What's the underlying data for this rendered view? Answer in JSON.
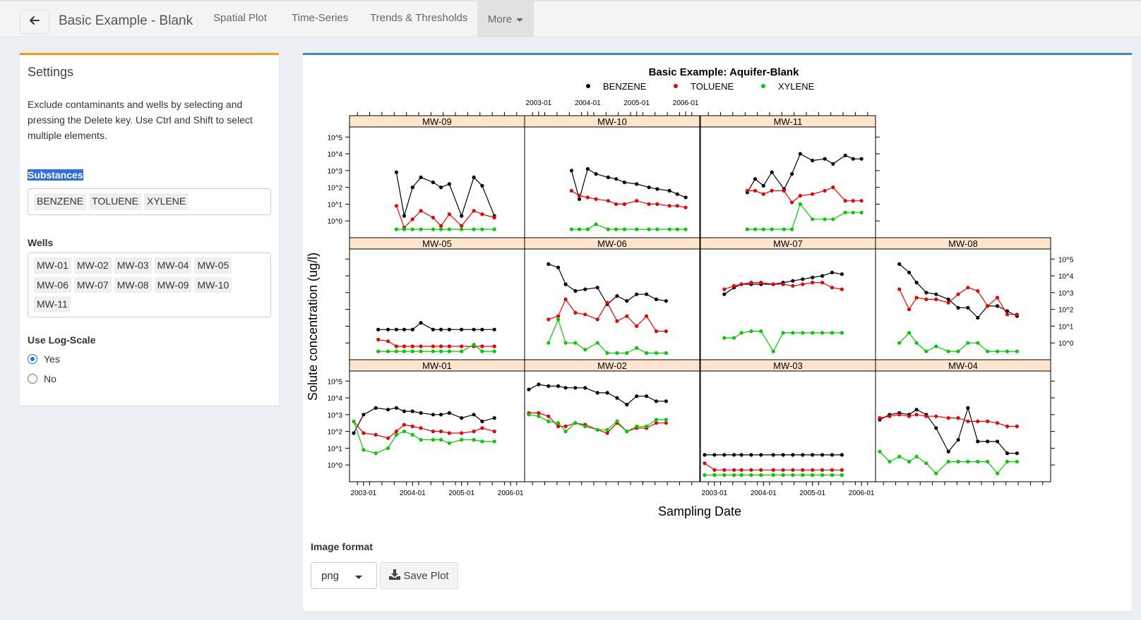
{
  "header": {
    "title": "Basic Example - Blank",
    "tabs": [
      "Spatial Plot",
      "Time-Series",
      "Trends & Thresholds"
    ],
    "more_label": "More"
  },
  "settings": {
    "title": "Settings",
    "description": "Exclude contaminants and wells by selecting and pressing the Delete key. Use Ctrl and Shift to select multiple elements.",
    "substances_label": "Substances",
    "substances": [
      "BENZENE",
      "TOLUENE",
      "XYLENE"
    ],
    "wells_label": "Wells",
    "wells": [
      "MW-01",
      "MW-02",
      "MW-03",
      "MW-04",
      "MW-05",
      "MW-06",
      "MW-07",
      "MW-08",
      "MW-09",
      "MW-10",
      "MW-11"
    ],
    "log_scale_label": "Use Log-Scale",
    "log_options": [
      "Yes",
      "No"
    ],
    "log_selected": "Yes"
  },
  "export": {
    "format_label": "Image format",
    "format_value": "png",
    "save_label": "Save Plot"
  },
  "chart_data": {
    "type": "line",
    "title": "Basic Example: Aquifer-Blank",
    "xlabel": "Sampling Date",
    "ylabel": "Solute concentration (ug/l)",
    "log_scale": true,
    "x_ticks": [
      "2003-01",
      "2004-01",
      "2005-01",
      "2006-01"
    ],
    "y_ticks_left": [
      "10^5",
      "10^4",
      "10^3",
      "10^2",
      "10^1",
      "10^0"
    ],
    "y_ticks_right": [
      "10^5",
      "10^4",
      "10^3",
      "10^2",
      "10^1",
      "10^0"
    ],
    "ylim": [
      -1,
      5.6
    ],
    "xlim": [
      2002.8,
      2006.2
    ],
    "legend_position": "top",
    "series_colors": {
      "BENZENE": "#000000",
      "TOLUENE": "#ee0000",
      "XYLENE": "#00cc00"
    },
    "panels": [
      {
        "well": "MW-09",
        "row": 0,
        "col": 0,
        "x": [
          2003.67,
          2003.83,
          2004.0,
          2004.17,
          2004.42,
          2004.58,
          2004.75,
          2005.0,
          2005.25,
          2005.42,
          2005.67
        ],
        "series": [
          {
            "name": "BENZENE",
            "values": [
              2.9,
              0.3,
              2.0,
              2.6,
              2.3,
              2.0,
              2.2,
              0.3,
              2.6,
              2.1,
              0.3
            ]
          },
          {
            "name": "TOLUENE",
            "values": [
              0.9,
              -0.4,
              0.1,
              0.6,
              0.2,
              -0.3,
              0.4,
              -0.3,
              0.6,
              0.4,
              0.2
            ]
          },
          {
            "name": "XYLENE",
            "values": [
              -0.5,
              -0.5,
              -0.5,
              -0.5,
              -0.5,
              -0.5,
              -0.5,
              -0.5,
              -0.5,
              -0.5,
              -0.5
            ]
          }
        ]
      },
      {
        "well": "MW-10",
        "row": 0,
        "col": 1,
        "x": [
          2003.67,
          2003.83,
          2004.0,
          2004.17,
          2004.42,
          2004.58,
          2004.75,
          2005.0,
          2005.25,
          2005.42,
          2005.67,
          2005.83,
          2006.0
        ],
        "series": [
          {
            "name": "BENZENE",
            "values": [
              3.0,
              1.3,
              3.1,
              2.8,
              2.6,
              2.5,
              2.3,
              2.2,
              2.0,
              1.9,
              1.8,
              1.6,
              1.4
            ]
          },
          {
            "name": "TOLUENE",
            "values": [
              1.8,
              1.5,
              1.4,
              1.3,
              1.2,
              1.0,
              1.0,
              1.2,
              1.0,
              1.0,
              0.9,
              0.9,
              0.8
            ]
          },
          {
            "name": "XYLENE",
            "values": [
              -0.5,
              -0.5,
              -0.5,
              -0.2,
              -0.5,
              -0.5,
              -0.5,
              -0.5,
              -0.5,
              -0.5,
              -0.5,
              -0.5,
              -0.5
            ]
          }
        ]
      },
      {
        "well": "MW-11",
        "row": 0,
        "col": 2,
        "x": [
          2003.67,
          2003.83,
          2004.0,
          2004.17,
          2004.42,
          2004.58,
          2004.75,
          2005.0,
          2005.25,
          2005.42,
          2005.67,
          2005.83,
          2006.0
        ],
        "series": [
          {
            "name": "BENZENE",
            "values": [
              1.7,
              2.5,
              2.1,
              2.9,
              1.9,
              2.8,
              4.0,
              3.6,
              3.7,
              3.4,
              3.9,
              3.7,
              3.7
            ]
          },
          {
            "name": "TOLUENE",
            "values": [
              1.8,
              1.8,
              1.6,
              1.8,
              1.8,
              1.1,
              1.5,
              1.6,
              1.8,
              2.0,
              1.2,
              1.2,
              1.2
            ]
          },
          {
            "name": "XYLENE",
            "values": [
              -0.5,
              -0.5,
              -0.5,
              -0.5,
              -0.5,
              -0.5,
              1.0,
              0.1,
              0.1,
              0.1,
              0.5,
              0.5,
              0.5
            ]
          }
        ]
      },
      {
        "well": "MW-05",
        "row": 1,
        "col": 0,
        "x": [
          2003.3,
          2003.5,
          2003.67,
          2003.83,
          2004.0,
          2004.17,
          2004.42,
          2004.58,
          2004.75,
          2005.0,
          2005.25,
          2005.42,
          2005.67
        ],
        "series": [
          {
            "name": "BENZENE",
            "values": [
              0.8,
              0.8,
              0.8,
              0.8,
              0.8,
              1.2,
              0.8,
              0.8,
              0.8,
              0.8,
              0.8,
              0.8,
              0.8
            ]
          },
          {
            "name": "TOLUENE",
            "values": [
              0.2,
              0.1,
              -0.2,
              -0.2,
              -0.2,
              -0.2,
              -0.2,
              -0.2,
              -0.2,
              -0.2,
              -0.2,
              -0.2,
              -0.2
            ]
          },
          {
            "name": "XYLENE",
            "values": [
              -0.5,
              -0.5,
              -0.5,
              -0.5,
              -0.5,
              -0.5,
              -0.5,
              -0.5,
              -0.5,
              -0.5,
              -0.1,
              -0.5,
              -0.5
            ]
          }
        ]
      },
      {
        "well": "MW-06",
        "row": 1,
        "col": 1,
        "x": [
          2003.2,
          2003.4,
          2003.55,
          2003.75,
          2003.95,
          2004.2,
          2004.4,
          2004.6,
          2004.8,
          2005.0,
          2005.2,
          2005.4,
          2005.6
        ],
        "series": [
          {
            "name": "BENZENE",
            "values": [
              4.7,
              4.5,
              3.5,
              3.1,
              3.2,
              3.3,
              2.3,
              2.8,
              2.5,
              2.9,
              2.9,
              2.6,
              2.5
            ]
          },
          {
            "name": "TOLUENE",
            "values": [
              1.4,
              1.6,
              2.6,
              1.8,
              1.7,
              1.4,
              2.4,
              1.3,
              1.6,
              1.0,
              1.6,
              0.7,
              0.7
            ]
          },
          {
            "name": "XYLENE",
            "values": [
              0.0,
              1.4,
              0.0,
              0.0,
              -0.4,
              0.0,
              -0.6,
              -0.6,
              -0.6,
              -0.3,
              -0.6,
              -0.6,
              -0.6
            ]
          }
        ]
      },
      {
        "well": "MW-07",
        "row": 1,
        "col": 2,
        "x": [
          2003.2,
          2003.4,
          2003.55,
          2003.75,
          2003.95,
          2004.2,
          2004.4,
          2004.6,
          2004.8,
          2005.0,
          2005.2,
          2005.4,
          2005.6
        ],
        "series": [
          {
            "name": "BENZENE",
            "values": [
              2.9,
              3.3,
              3.5,
              3.5,
              3.5,
              3.5,
              3.6,
              3.7,
              3.8,
              3.9,
              4.0,
              4.2,
              4.1
            ]
          },
          {
            "name": "TOLUENE",
            "values": [
              3.2,
              3.4,
              3.5,
              3.6,
              3.6,
              3.5,
              3.5,
              3.4,
              3.5,
              3.6,
              3.6,
              3.3,
              3.2
            ]
          },
          {
            "name": "XYLENE",
            "values": [
              0.3,
              0.3,
              0.6,
              0.7,
              0.7,
              -0.5,
              0.6,
              0.6,
              0.6,
              0.6,
              0.6,
              0.6,
              0.6
            ]
          }
        ]
      },
      {
        "well": "MW-08",
        "row": 1,
        "col": 3,
        "x": [
          2003.2,
          2003.4,
          2003.55,
          2003.75,
          2003.95,
          2004.2,
          2004.4,
          2004.6,
          2004.8,
          2005.0,
          2005.2,
          2005.4,
          2005.6
        ],
        "series": [
          {
            "name": "BENZENE",
            "values": [
              4.7,
              4.2,
              3.6,
              3.0,
              2.9,
              2.6,
              2.1,
              2.1,
              1.5,
              2.2,
              2.2,
              1.9,
              1.6
            ]
          },
          {
            "name": "TOLUENE",
            "values": [
              3.2,
              2.0,
              2.7,
              2.6,
              2.6,
              2.4,
              2.9,
              3.3,
              3.1,
              2.2,
              2.7,
              1.7,
              1.7
            ]
          },
          {
            "name": "XYLENE",
            "values": [
              0.0,
              0.6,
              0.0,
              -0.5,
              -0.2,
              -0.5,
              -0.5,
              0.0,
              0.0,
              -0.5,
              -0.5,
              -0.5,
              -0.5
            ]
          }
        ]
      },
      {
        "well": "MW-01",
        "row": 2,
        "col": 0,
        "x": [
          2002.8,
          2003.0,
          2003.25,
          2003.5,
          2003.67,
          2003.83,
          2004.0,
          2004.17,
          2004.42,
          2004.58,
          2004.75,
          2005.0,
          2005.25,
          2005.42,
          2005.67
        ],
        "series": [
          {
            "name": "BENZENE",
            "values": [
              1.9,
              3.0,
              3.4,
              3.3,
              3.4,
              3.2,
              3.2,
              3.1,
              3.0,
              3.0,
              3.1,
              2.8,
              3.0,
              2.6,
              2.8
            ]
          },
          {
            "name": "TOLUENE",
            "values": [
              2.6,
              1.9,
              1.8,
              1.6,
              2.0,
              2.4,
              2.3,
              2.2,
              2.0,
              2.0,
              1.9,
              1.9,
              2.0,
              2.2,
              2.0
            ]
          },
          {
            "name": "XYLENE",
            "values": [
              2.6,
              0.9,
              0.7,
              1.0,
              1.8,
              2.0,
              1.8,
              1.5,
              1.5,
              1.5,
              1.3,
              1.5,
              1.5,
              1.4,
              1.4
            ]
          }
        ]
      },
      {
        "well": "MW-02",
        "row": 2,
        "col": 1,
        "x": [
          2002.8,
          2003.0,
          2003.2,
          2003.4,
          2003.55,
          2003.75,
          2003.95,
          2004.2,
          2004.4,
          2004.6,
          2004.8,
          2005.0,
          2005.2,
          2005.4,
          2005.6
        ],
        "series": [
          {
            "name": "BENZENE",
            "values": [
              4.5,
              4.8,
              4.7,
              4.7,
              4.6,
              4.6,
              4.6,
              4.3,
              4.3,
              4.0,
              3.6,
              4.1,
              4.1,
              3.8,
              3.8
            ]
          },
          {
            "name": "TOLUENE",
            "values": [
              3.1,
              3.1,
              2.9,
              2.3,
              2.3,
              2.5,
              2.4,
              2.1,
              1.9,
              2.5,
              2.0,
              2.2,
              2.2,
              2.5,
              2.5
            ]
          },
          {
            "name": "XYLENE",
            "values": [
              3.0,
              2.9,
              2.6,
              2.5,
              2.0,
              2.5,
              2.3,
              2.1,
              2.1,
              2.6,
              2.0,
              2.3,
              2.3,
              2.7,
              2.7
            ]
          }
        ]
      },
      {
        "well": "MW-03",
        "row": 2,
        "col": 2,
        "x": [
          2002.8,
          2003.0,
          2003.2,
          2003.4,
          2003.55,
          2003.75,
          2003.95,
          2004.2,
          2004.4,
          2004.6,
          2004.8,
          2005.0,
          2005.2,
          2005.4,
          2005.6
        ],
        "series": [
          {
            "name": "BENZENE",
            "values": [
              0.6,
              0.6,
              0.6,
              0.6,
              0.6,
              0.6,
              0.6,
              0.6,
              0.6,
              0.6,
              0.6,
              0.6,
              0.6,
              0.6,
              0.6
            ]
          },
          {
            "name": "TOLUENE",
            "values": [
              0.1,
              -0.3,
              -0.3,
              -0.3,
              -0.3,
              -0.3,
              -0.3,
              -0.3,
              -0.3,
              -0.3,
              -0.3,
              -0.3,
              -0.3,
              -0.3,
              -0.3
            ]
          },
          {
            "name": "XYLENE",
            "values": [
              -0.6,
              -0.6,
              -0.6,
              -0.6,
              -0.6,
              -0.6,
              -0.6,
              -0.6,
              -0.6,
              -0.6,
              -0.6,
              -0.6,
              -0.6,
              -0.6,
              -0.6
            ]
          }
        ]
      },
      {
        "well": "MW-04",
        "row": 2,
        "col": 3,
        "x": [
          2002.8,
          2003.0,
          2003.2,
          2003.4,
          2003.55,
          2003.75,
          2003.95,
          2004.2,
          2004.4,
          2004.6,
          2004.8,
          2005.0,
          2005.2,
          2005.4,
          2005.6
        ],
        "series": [
          {
            "name": "BENZENE",
            "values": [
              2.7,
              3.0,
              3.1,
              3.0,
              3.3,
              3.0,
              2.2,
              0.8,
              1.5,
              3.4,
              1.4,
              1.4,
              1.4,
              0.7,
              0.7
            ]
          },
          {
            "name": "TOLUENE",
            "values": [
              2.8,
              2.9,
              3.0,
              2.9,
              3.0,
              2.9,
              2.9,
              2.8,
              2.8,
              2.6,
              2.6,
              2.6,
              2.5,
              2.3,
              2.3
            ]
          },
          {
            "name": "XYLENE",
            "values": [
              0.8,
              0.2,
              0.5,
              0.2,
              0.5,
              0.1,
              -0.5,
              0.2,
              0.2,
              0.2,
              0.2,
              0.2,
              -0.5,
              0.2,
              0.2
            ]
          }
        ]
      }
    ]
  }
}
